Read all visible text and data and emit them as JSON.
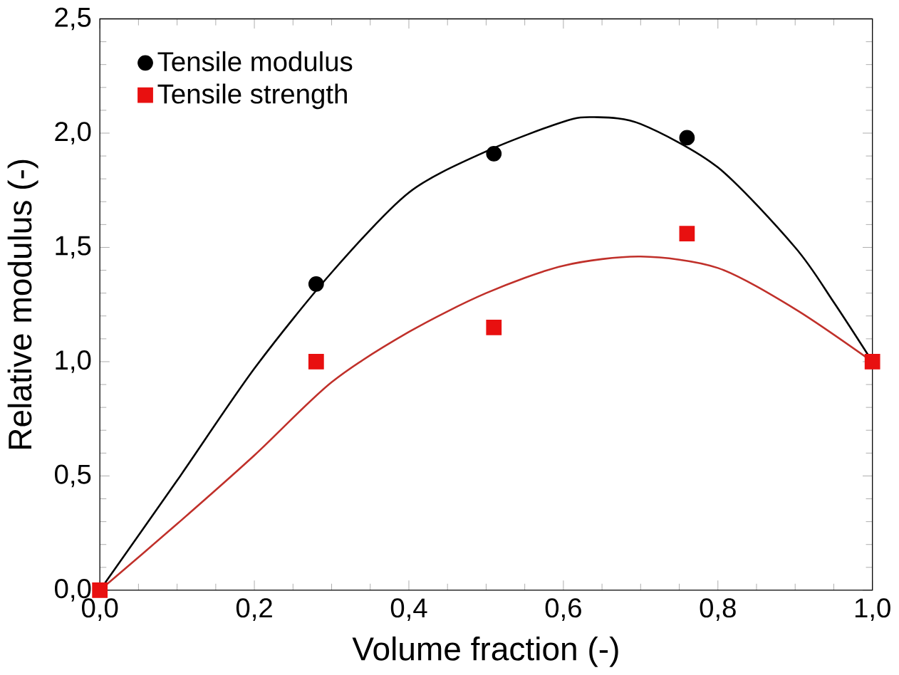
{
  "chart_data": {
    "type": "scatter",
    "xlabel": "Volume fraction (-)",
    "ylabel": "Relative modulus (-)",
    "xlim": [
      0,
      1
    ],
    "ylim": [
      0,
      2.5
    ],
    "xticks": [
      {
        "value": 0,
        "label": "0,0"
      },
      {
        "value": 0.2,
        "label": "0,2"
      },
      {
        "value": 0.4,
        "label": "0,4"
      },
      {
        "value": 0.6,
        "label": "0,6"
      },
      {
        "value": 0.8,
        "label": "0,8"
      },
      {
        "value": 1,
        "label": "1,0"
      }
    ],
    "yticks": [
      {
        "value": 0,
        "label": "0,0"
      },
      {
        "value": 0.5,
        "label": "0,5"
      },
      {
        "value": 1,
        "label": "1,0"
      },
      {
        "value": 1.5,
        "label": "1,5"
      },
      {
        "value": 2,
        "label": "2,0"
      },
      {
        "value": 2.5,
        "label": "2,5"
      }
    ],
    "legend": "top left",
    "grid": false,
    "series": [
      {
        "name": "Tensile modulus",
        "marker": "circle",
        "color": "#000000",
        "x": [
          0.28,
          0.51,
          0.76
        ],
        "values": [
          1.34,
          1.91,
          1.98
        ]
      },
      {
        "name": "Tensile strength",
        "marker": "square",
        "color": "#e81010",
        "x": [
          0,
          0.28,
          0.51,
          0.76,
          1
        ],
        "values": [
          0,
          1.0,
          1.15,
          1.56,
          1
        ]
      },
      {
        "type": "line",
        "color": "#000000",
        "x": [
          0,
          0.1,
          0.2,
          0.3,
          0.4,
          0.5,
          0.6,
          0.64,
          0.7,
          0.8,
          0.9,
          0.95,
          1
        ],
        "values": [
          0,
          0.48,
          0.97,
          1.39,
          1.74,
          1.92,
          2.05,
          2.07,
          2.04,
          1.85,
          1.5,
          1.26,
          1
        ]
      },
      {
        "type": "line",
        "color": "#c0302a",
        "x": [
          0,
          0.1,
          0.2,
          0.3,
          0.4,
          0.5,
          0.6,
          0.7,
          0.8,
          0.9,
          1
        ],
        "values": [
          0,
          0.29,
          0.59,
          0.91,
          1.13,
          1.3,
          1.42,
          1.46,
          1.41,
          1.23,
          1
        ]
      }
    ]
  }
}
